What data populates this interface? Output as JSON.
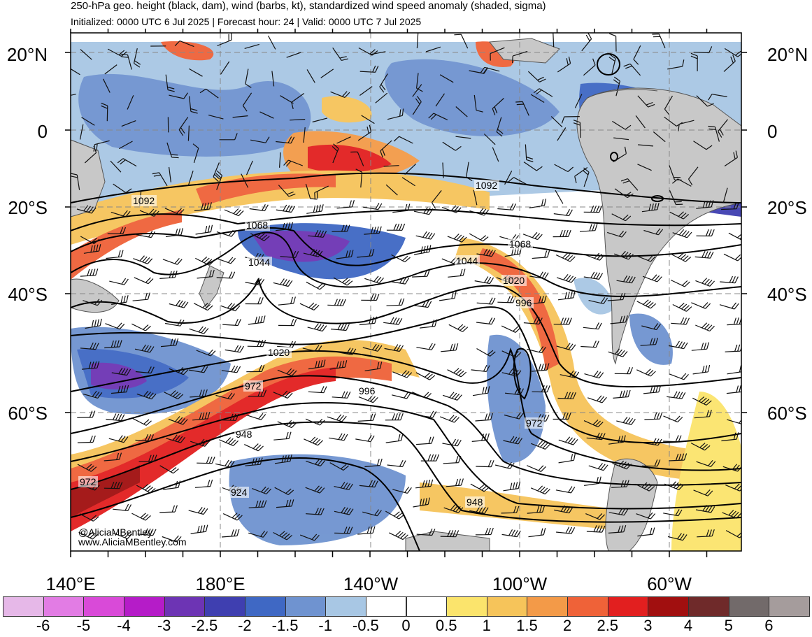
{
  "header": {
    "title": "250-hPa geo. height (black, dam), wind (barbs, kt), standardized wind speed anomaly (shaded, sigma)",
    "subtitle": "Initialized: 0000 UTC 6 Jul 2025 | Forecast hour: 24 | Valid: 0000 UTC 7 Jul 2025"
  },
  "map": {
    "latitude_labels": [
      "20°N",
      "0",
      "20°S",
      "40°S",
      "60°S"
    ],
    "longitude_labels": [
      "140°E",
      "180°E",
      "140°W",
      "100°W",
      "60°W"
    ],
    "contour_labels": [
      "1092",
      "1092",
      "1068",
      "1068",
      "1044",
      "1044",
      "1020",
      "1020",
      "996",
      "996",
      "972",
      "972",
      "972",
      "948",
      "948",
      "924"
    ],
    "credit": [
      "@AliciaMBentley",
      "www.AliciaMBentley.com"
    ],
    "colors": {
      "land": "#c8c8c8",
      "contour": "#000000",
      "barb": "#111111",
      "gridline": "#888888"
    }
  },
  "colorbar": {
    "labels": [
      "-6",
      "-5",
      "-4",
      "-3",
      "-2.5",
      "-2",
      "-1.5",
      "-1",
      "-0.5",
      "0",
      "0.5",
      "1",
      "1.5",
      "2",
      "2.5",
      "3",
      "4",
      "5",
      "6"
    ],
    "colors": [
      "#e6b8e8",
      "#e27ce4",
      "#d94ad8",
      "#b51cc8",
      "#6d34b4",
      "#3f3fb0",
      "#3f68c4",
      "#6f93d0",
      "#a8c7e4",
      "#ffffff",
      "#ffffff",
      "#fbe46c",
      "#f6c45a",
      "#f39a48",
      "#ef6238",
      "#e21f1f",
      "#a10f0f",
      "#6f2a2a",
      "#726a6a",
      "#a59c9c"
    ]
  }
}
